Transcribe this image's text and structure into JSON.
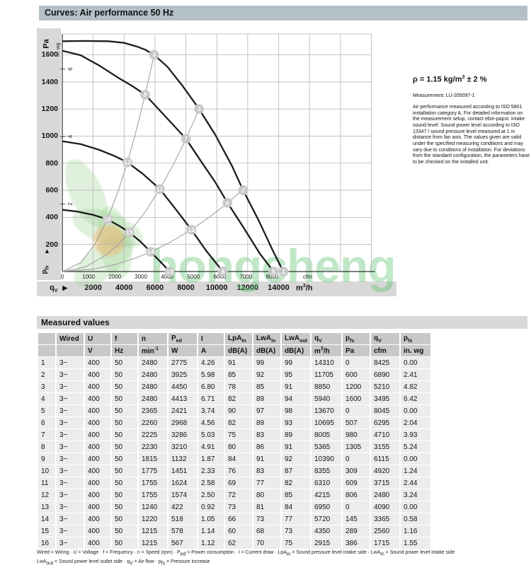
{
  "header": {
    "title": "Curves: Air performance 50 Hz",
    "bar_color": "#b4c0c8"
  },
  "info": {
    "density": "ρ = 1.15 kg/m^{3} ± 2 %",
    "measurement": "Measurement: LU-205097-1",
    "note": "Air performance measured according to ISO 5801 installation category A. For detailed information on the measurement setup, contact ebm-papst. Intake sound level: Sound power level according to ISO 13347 / sound pressure level measured at 1 m distance from fan axis. The values given are valid under the specified measuring conditions and may vary due to conditions of installation. For deviations from the standard configuration, the parameters have to be checked on the installed unit."
  },
  "chart_data": {
    "type": "line",
    "title": "Curves: Air performance 50 Hz",
    "x_axis": {
      "label": "q_{V}",
      "arrow_right": "▶",
      "cfm_ticks": [
        0,
        1000,
        2000,
        3000,
        4000,
        5000,
        6000,
        7000,
        8000
      ],
      "cfm_unit": "cfm",
      "m3h_ticks": [
        2000,
        4000,
        6000,
        8000,
        10000,
        12000,
        14000
      ],
      "m3h_unit": "m^{3}/h",
      "m3h_range": [
        0,
        20000
      ]
    },
    "y_axis": {
      "label": "Pa",
      "arrow_label": "p_{fs}",
      "arrow_up": "▲",
      "ticks": [
        200,
        400,
        600,
        800,
        1000,
        1200,
        1400,
        1600
      ],
      "range": [
        0,
        1755
      ],
      "secondary_label": "in. wg",
      "secondary_ticks": [
        2,
        4,
        6
      ]
    },
    "grid": {
      "x_step_m3h": 2000,
      "y_step_pa": 200
    },
    "fan_curves": [
      {
        "name": "fan-curve-2480-rpm",
        "points": [
          [
            0,
            1700
          ],
          [
            1500,
            1702
          ],
          [
            3000,
            1700
          ],
          [
            4000,
            1688
          ],
          [
            4800,
            1662
          ],
          [
            5400,
            1636
          ],
          [
            5940,
            1600
          ],
          [
            6800,
            1512
          ],
          [
            7800,
            1368
          ],
          [
            8850,
            1200
          ],
          [
            9900,
            1010
          ],
          [
            11000,
            776
          ],
          [
            11705,
            600
          ],
          [
            12700,
            380
          ],
          [
            13600,
            160
          ],
          [
            14310,
            0
          ]
        ]
      },
      {
        "name": "fan-curve-2365-rpm",
        "points": [
          [
            0,
            1630
          ],
          [
            1200,
            1596
          ],
          [
            2400,
            1520
          ],
          [
            3600,
            1432
          ],
          [
            4500,
            1372
          ],
          [
            5365,
            1305
          ],
          [
            6300,
            1190
          ],
          [
            7200,
            1080
          ],
          [
            8005,
            980
          ],
          [
            9000,
            810
          ],
          [
            9900,
            660
          ],
          [
            10695,
            507
          ],
          [
            11700,
            330
          ],
          [
            12800,
            130
          ],
          [
            13670,
            0
          ]
        ]
      },
      {
        "name": "fan-curve-1815-rpm",
        "points": [
          [
            0,
            962
          ],
          [
            1200,
            940
          ],
          [
            2400,
            898
          ],
          [
            3400,
            852
          ],
          [
            4215,
            806
          ],
          [
            5200,
            722
          ],
          [
            6310,
            609
          ],
          [
            7300,
            466
          ],
          [
            8355,
            309
          ],
          [
            9300,
            156
          ],
          [
            10390,
            0
          ]
        ]
      },
      {
        "name": "fan-curve-1240-rpm",
        "points": [
          [
            0,
            456
          ],
          [
            1000,
            442
          ],
          [
            2000,
            418
          ],
          [
            2915,
            386
          ],
          [
            3700,
            336
          ],
          [
            4350,
            289
          ],
          [
            5050,
            222
          ],
          [
            5720,
            145
          ],
          [
            6350,
            72
          ],
          [
            6950,
            0
          ]
        ]
      }
    ],
    "system_lines": [
      {
        "name": "system-line-a",
        "points": [
          [
            0,
            0
          ],
          [
            1200,
            65
          ],
          [
            2100,
            200
          ],
          [
            2915,
            386
          ],
          [
            3600,
            588
          ],
          [
            4215,
            806
          ],
          [
            4800,
            1045
          ],
          [
            5365,
            1306
          ],
          [
            5940,
            1600
          ]
        ]
      },
      {
        "name": "system-line-b",
        "points": [
          [
            0,
            0
          ],
          [
            1500,
            34
          ],
          [
            2800,
            120
          ],
          [
            3600,
            198
          ],
          [
            4350,
            289
          ],
          [
            5400,
            446
          ],
          [
            6310,
            609
          ],
          [
            7200,
            792
          ],
          [
            8005,
            979
          ],
          [
            8850,
            1197
          ]
        ]
      },
      {
        "name": "system-line-c",
        "points": [
          [
            0,
            0
          ],
          [
            2000,
            18
          ],
          [
            3500,
            54
          ],
          [
            4700,
            98
          ],
          [
            5720,
            145
          ],
          [
            7000,
            217
          ],
          [
            8355,
            309
          ],
          [
            9600,
            408
          ],
          [
            10695,
            507
          ],
          [
            11705,
            606
          ]
        ]
      }
    ],
    "operating_points": [
      {
        "id": 1,
        "m3h": 14310,
        "pa": 0
      },
      {
        "id": 2,
        "m3h": 11705,
        "pa": 600
      },
      {
        "id": 3,
        "m3h": 8850,
        "pa": 1200
      },
      {
        "id": 4,
        "m3h": 5940,
        "pa": 1600
      },
      {
        "id": 5,
        "m3h": 13670,
        "pa": 0
      },
      {
        "id": 6,
        "m3h": 10695,
        "pa": 507
      },
      {
        "id": 7,
        "m3h": 8005,
        "pa": 980
      },
      {
        "id": 8,
        "m3h": 5365,
        "pa": 1305
      },
      {
        "id": 9,
        "m3h": 10390,
        "pa": 0
      },
      {
        "id": 10,
        "m3h": 8355,
        "pa": 309
      },
      {
        "id": 11,
        "m3h": 6310,
        "pa": 609
      },
      {
        "id": 12,
        "m3h": 4215,
        "pa": 806
      },
      {
        "id": 13,
        "m3h": 6950,
        "pa": 0
      },
      {
        "id": 14,
        "m3h": 5720,
        "pa": 145
      },
      {
        "id": 15,
        "m3h": 4350,
        "pa": 289
      },
      {
        "id": 16,
        "m3h": 2915,
        "pa": 386
      }
    ]
  },
  "watermark": {
    "text": "hongcheng",
    "text_color": "rgba(80,190,100,0.36)"
  },
  "table": {
    "title": "Measured values",
    "columns": [
      "",
      "Wired",
      "U",
      "f",
      "n",
      "P_{ed}",
      "I",
      "LpA_{in}",
      "LwA_{in}",
      "LwA_{out}",
      "q_{V}",
      "p_{fs}",
      "q_{V}",
      "p_{fs}"
    ],
    "units": [
      "",
      "",
      "V",
      "Hz",
      "min^{-1}",
      "W",
      "A",
      "dB(A)",
      "dB(A)",
      "dB(A)",
      "m^{3}/h",
      "Pa",
      "cfm",
      "in. wg"
    ],
    "rows": [
      [
        "1",
        "3~",
        "400",
        "50",
        "2480",
        "2775",
        "4.26",
        "91",
        "99",
        "99",
        "14310",
        "0",
        "8425",
        "0.00"
      ],
      [
        "2",
        "3~",
        "400",
        "50",
        "2480",
        "3925",
        "5.98",
        "85",
        "92",
        "95",
        "11705",
        "600",
        "6890",
        "2.41"
      ],
      [
        "3",
        "3~",
        "400",
        "50",
        "2480",
        "4450",
        "6.80",
        "78",
        "85",
        "91",
        "8850",
        "1200",
        "5210",
        "4.82"
      ],
      [
        "4",
        "3~",
        "400",
        "50",
        "2480",
        "4413",
        "6.71",
        "82",
        "89",
        "94",
        "5940",
        "1600",
        "3495",
        "6.42"
      ],
      [
        "5",
        "3~",
        "400",
        "50",
        "2365",
        "2421",
        "3.74",
        "90",
        "97",
        "98",
        "13670",
        "0",
        "8045",
        "0.00"
      ],
      [
        "6",
        "3~",
        "400",
        "50",
        "2260",
        "2968",
        "4.56",
        "82",
        "89",
        "93",
        "10695",
        "507",
        "6295",
        "2.04"
      ],
      [
        "7",
        "3~",
        "400",
        "50",
        "2225",
        "3286",
        "5.03",
        "75",
        "83",
        "89",
        "8005",
        "980",
        "4710",
        "3.93"
      ],
      [
        "8",
        "3~",
        "400",
        "50",
        "2230",
        "3210",
        "4.91",
        "80",
        "86",
        "91",
        "5365",
        "1305",
        "3155",
        "5.24"
      ],
      [
        "9",
        "3~",
        "400",
        "50",
        "1815",
        "1132",
        "1.87",
        "84",
        "91",
        "92",
        "10390",
        "0",
        "6115",
        "0.00"
      ],
      [
        "10",
        "3~",
        "400",
        "50",
        "1775",
        "1451",
        "2.33",
        "76",
        "83",
        "87",
        "8355",
        "309",
        "4920",
        "1.24"
      ],
      [
        "11",
        "3~",
        "400",
        "50",
        "1755",
        "1624",
        "2.58",
        "69",
        "77",
        "82",
        "6310",
        "609",
        "3715",
        "2.44"
      ],
      [
        "12",
        "3~",
        "400",
        "50",
        "1755",
        "1574",
        "2.50",
        "72",
        "80",
        "85",
        "4215",
        "806",
        "2480",
        "3.24"
      ],
      [
        "13",
        "3~",
        "400",
        "50",
        "1240",
        "422",
        "0.92",
        "73",
        "81",
        "84",
        "6950",
        "0",
        "4090",
        "0.00"
      ],
      [
        "14",
        "3~",
        "400",
        "50",
        "1220",
        "518",
        "1.05",
        "66",
        "73",
        "77",
        "5720",
        "145",
        "3365",
        "0.58"
      ],
      [
        "15",
        "3~",
        "400",
        "50",
        "1215",
        "578",
        "1.14",
        "60",
        "68",
        "73",
        "4350",
        "289",
        "2560",
        "1.16"
      ],
      [
        "16",
        "3~",
        "400",
        "50",
        "1215",
        "567",
        "1.12",
        "62",
        "70",
        "75",
        "2915",
        "386",
        "1715",
        "1.55"
      ]
    ]
  },
  "legend": {
    "line1": "Wired = Wiring · U = Voltage · f = Frequency · n = Speed (rpm) · P_{ed} = Power consumption · I = Current draw · LpA_{in} = Sound pressure level intake side · LwA_{in} = Sound power level intake side",
    "line2": "LwA_{out} = Sound power level outlet side · q_{V} = Air flow · p_{fs} = Pressure increase"
  }
}
